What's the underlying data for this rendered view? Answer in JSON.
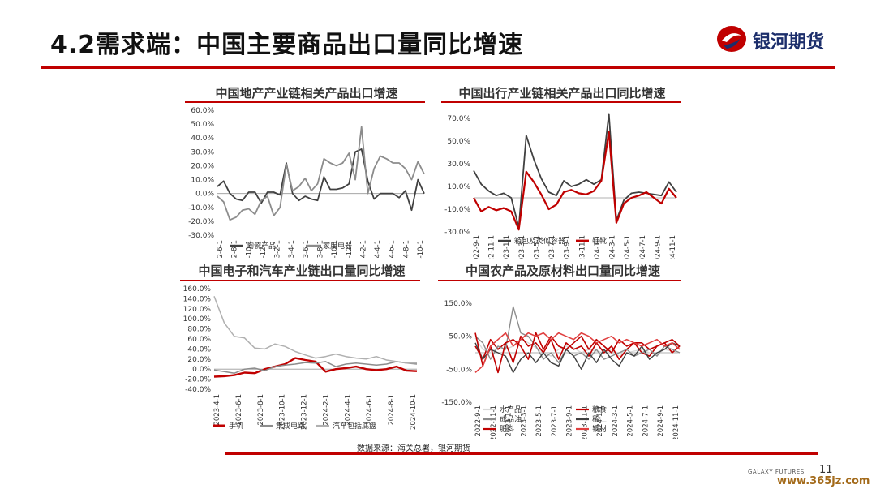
{
  "header": {
    "title": "4.2需求端：中国主要商品出口量同比增速"
  },
  "logo": {
    "text": "银河期货"
  },
  "footer": {
    "source": "数据来源：海关总署，银河期货",
    "brand": "GALAXY FUTURES",
    "page": "11",
    "watermark": "www.365jz.com"
  },
  "colors": {
    "accent": "#c00000",
    "dark_line": "#404040",
    "gray_line": "#8c8c8c",
    "light_line": "#b0b0b0"
  },
  "chart_data": [
    {
      "type": "line",
      "title": "中国地产产业链相关产品出口增速",
      "ylim": [
        -0.3,
        0.6
      ],
      "yticks": [
        "60.0%",
        "50.0%",
        "40.0%",
        "30.0%",
        "20.0%",
        "10.0%",
        "0.0%",
        "-10.0%",
        "-20.0%",
        "-30.0%"
      ],
      "xticks": [
        "2022-6-1",
        "2022-8-1",
        "2022-10-1",
        "2022-12-1",
        "2023-2-1",
        "2023-4-1",
        "2023-6-1",
        "2023-8-1",
        "2023-10-1",
        "2023-12-1",
        "2024-2-1",
        "2024-4-1",
        "2024-6-1",
        "2024-8-1",
        "2024-10-1"
      ],
      "series": [
        {
          "name": "陶瓷产品",
          "color": "#404040",
          "width": 1.8,
          "values": [
            0.05,
            0.09,
            0.0,
            -0.04,
            -0.05,
            0.01,
            0.01,
            -0.07,
            0.01,
            0.01,
            -0.01,
            0.22,
            0.0,
            -0.05,
            -0.02,
            -0.04,
            -0.05,
            0.12,
            0.03,
            0.03,
            0.04,
            0.07,
            0.3,
            0.32,
            0.09,
            -0.04,
            0.0,
            0.0,
            0.0,
            -0.03,
            0.02,
            -0.12,
            0.1,
            0.0
          ]
        },
        {
          "name": "家用电器",
          "color": "#8c8c8c",
          "width": 1.8,
          "values": [
            -0.02,
            -0.06,
            -0.19,
            -0.17,
            -0.12,
            -0.11,
            -0.15,
            -0.05,
            -0.02,
            -0.16,
            -0.1,
            0.21,
            0.02,
            0.05,
            0.11,
            0.02,
            0.07,
            0.25,
            0.22,
            0.2,
            0.22,
            0.29,
            0.1,
            0.48,
            0.0,
            0.18,
            0.27,
            0.25,
            0.22,
            0.22,
            0.18,
            0.1,
            0.23,
            0.14
          ]
        }
      ]
    },
    {
      "type": "line",
      "title": "中国出行产业链相关产品出口同比增速",
      "ylim": [
        -0.3,
        0.7
      ],
      "yticks": [
        "70.0%",
        "50.0%",
        "30.0%",
        "10.0%",
        "-10.0%",
        "-30.0%"
      ],
      "xticks": [
        "2022-9-1",
        "2022-11-1",
        "2023-1-1",
        "2023-3-1",
        "2023-5-1",
        "2023-7-1",
        "2023-9-1",
        "2023-11-1",
        "2024-1-1",
        "2024-3-1",
        "2024-5-1",
        "2024-7-1",
        "2024-9-1",
        "2024-11-1"
      ],
      "series": [
        {
          "name": "箱包及类似容器",
          "color": "#404040",
          "width": 1.8,
          "values": [
            0.24,
            0.12,
            0.06,
            0.02,
            0.04,
            0.0,
            -0.26,
            0.55,
            0.34,
            0.17,
            0.05,
            0.02,
            0.15,
            0.1,
            0.12,
            0.16,
            0.12,
            0.16,
            0.74,
            -0.2,
            -0.02,
            0.04,
            0.05,
            0.04,
            0.03,
            0.02,
            0.14,
            0.05
          ]
        },
        {
          "name": "鞋靴",
          "color": "#c00000",
          "width": 2.2,
          "values": [
            0.0,
            -0.12,
            -0.08,
            -0.11,
            -0.09,
            -0.12,
            -0.28,
            0.23,
            0.14,
            0.03,
            -0.1,
            -0.06,
            0.05,
            0.07,
            0.04,
            0.03,
            0.06,
            0.15,
            0.58,
            -0.22,
            -0.05,
            0.0,
            0.02,
            0.05,
            0.0,
            -0.05,
            0.08,
            0.0
          ]
        }
      ]
    },
    {
      "type": "line",
      "title": "中国电子和汽车产业链出口量同比增速",
      "ylim": [
        -0.4,
        1.6
      ],
      "yticks": [
        "160.0%",
        "140.0%",
        "120.0%",
        "100.0%",
        "80.0%",
        "60.0%",
        "40.0%",
        "20.0%",
        "0.0%",
        "-20.0%",
        "-40.0%"
      ],
      "xticks": [
        "2023-4-1",
        "2023-6-1",
        "2023-8-1",
        "2023-10-1",
        "2023-12-1",
        "2024-2-1",
        "2024-4-1",
        "2024-6-1",
        "2024-8-1",
        "2024-10-1"
      ],
      "series": [
        {
          "name": "手机",
          "color": "#c00000",
          "width": 2.4,
          "values": [
            -0.15,
            -0.14,
            -0.12,
            -0.07,
            -0.08,
            0.0,
            0.05,
            0.1,
            0.22,
            0.18,
            0.15,
            -0.05,
            0.0,
            0.02,
            0.05,
            0.0,
            -0.02,
            0.0,
            0.05,
            -0.03,
            -0.04
          ]
        },
        {
          "name": "集成电路",
          "color": "#8c8c8c",
          "width": 1.5,
          "values": [
            -0.02,
            -0.05,
            -0.08,
            0.0,
            0.02,
            -0.03,
            0.05,
            0.08,
            0.1,
            0.13,
            0.12,
            0.15,
            0.05,
            0.1,
            0.12,
            0.1,
            0.08,
            0.1,
            0.15,
            0.12,
            0.1
          ]
        },
        {
          "name": "汽车包括底盘",
          "color": "#b0b0b0",
          "width": 1.5,
          "values": [
            1.45,
            0.92,
            0.65,
            0.62,
            0.42,
            0.4,
            0.5,
            0.45,
            0.35,
            0.28,
            0.22,
            0.25,
            0.3,
            0.25,
            0.22,
            0.2,
            0.25,
            0.18,
            0.15,
            0.12,
            0.12
          ]
        }
      ]
    },
    {
      "type": "line",
      "title": "中国农产品及原材料出口量同比增速",
      "ylim": [
        -1.5,
        1.5
      ],
      "yticks": [
        "150.0%",
        "50.0%",
        "-50.0%",
        "-150.0%"
      ],
      "xticks": [
        "2022-9-1",
        "2022-11-1",
        "2023-1-1",
        "2023-3-1",
        "2023-5-1",
        "2023-7-1",
        "2023-9-1",
        "2023-11-1",
        "2024-1-1",
        "2024-3-1",
        "2024-5-1",
        "2024-7-1",
        "2024-9-1",
        "2024-11-1"
      ],
      "series": [
        {
          "name": "水产品",
          "color": "#d9d9d9",
          "width": 1.4,
          "values": [
            0.45,
            0.1,
            0.0,
            0.15,
            0.1,
            0.2,
            0.4,
            0.3,
            0.15,
            0.0,
            -0.1,
            0.1,
            0.2,
            0.15,
            0.0,
            0.1,
            0.05,
            0.0,
            0.1,
            -0.1,
            0.0,
            0.05,
            0.1,
            0.0,
            -0.05,
            0.1,
            0.05,
            0.0
          ]
        },
        {
          "name": "粮食",
          "color": "#c00000",
          "width": 1.6,
          "values": [
            0.2,
            -0.2,
            0.4,
            0.1,
            0.3,
            -0.3,
            0.5,
            0.2,
            0.3,
            0.0,
            0.4,
            -0.2,
            0.3,
            0.1,
            0.2,
            -0.1,
            0.3,
            0.0,
            0.2,
            -0.2,
            0.1,
            0.3,
            0.0,
            -0.1,
            0.2,
            0.3,
            0.0,
            0.2
          ]
        },
        {
          "name": "成品油",
          "color": "#8c8c8c",
          "width": 1.4,
          "values": [
            0.5,
            0.3,
            -0.2,
            0.2,
            0.1,
            1.4,
            0.6,
            0.5,
            0.2,
            -0.2,
            0.0,
            -0.3,
            0.1,
            -0.1,
            0.0,
            -0.2,
            0.1,
            -0.2,
            -0.1,
            0.0,
            0.1,
            -0.1,
            0.0,
            0.1,
            -0.1,
            0.2,
            0.1,
            0.0
          ]
        },
        {
          "name": "稀土",
          "color": "#404040",
          "width": 1.4,
          "values": [
            0.3,
            -0.2,
            0.1,
            0.0,
            -0.1,
            -0.6,
            -0.2,
            0.0,
            -0.3,
            0.0,
            -0.3,
            -0.4,
            0.1,
            -0.1,
            -0.5,
            0.0,
            -0.3,
            0.1,
            -0.2,
            -0.4,
            0.0,
            -0.1,
            0.2,
            -0.2,
            0.0,
            0.1,
            0.3,
            0.2
          ]
        },
        {
          "name": "肥料",
          "color": "#c00000",
          "width": 1.6,
          "values": [
            0.6,
            -0.4,
            0.2,
            -0.6,
            0.3,
            0.4,
            0.2,
            -0.2,
            0.6,
            0.1,
            0.5,
            0.2,
            0.1,
            0.3,
            0.5,
            0.1,
            0.4,
            0.2,
            0.0,
            0.4,
            0.2,
            0.3,
            0.3,
            0.1,
            0.2,
            0.3,
            0.4,
            0.2
          ]
        },
        {
          "name": "钢材",
          "color": "#e04040",
          "width": 1.6,
          "values": [
            -0.6,
            -0.4,
            0.2,
            0.4,
            0.6,
            0.2,
            0.4,
            0.6,
            0.5,
            0.6,
            0.4,
            0.6,
            0.5,
            0.4,
            0.6,
            0.5,
            0.3,
            0.4,
            0.5,
            0.3,
            0.4,
            0.3,
            0.2,
            0.3,
            0.4,
            0.2,
            0.3,
            0.1
          ]
        }
      ]
    }
  ]
}
